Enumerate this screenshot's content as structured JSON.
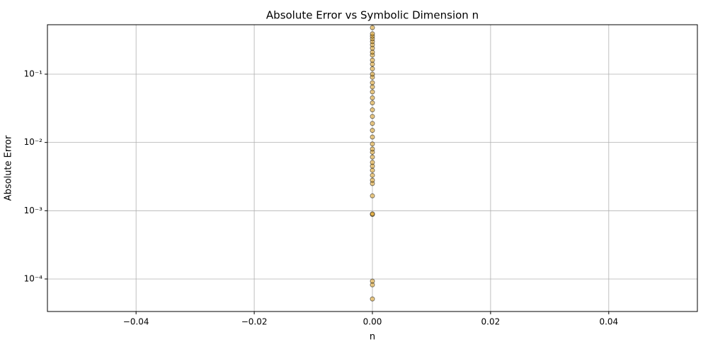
{
  "chart_data": {
    "type": "scatter",
    "title": "Absolute Error vs Symbolic Dimension n",
    "x_label": "n",
    "y_label": "Absolute Error",
    "xlim": [
      -0.055,
      0.055
    ],
    "xticks": [
      {
        "value": -0.04,
        "label": "−0.04"
      },
      {
        "value": -0.02,
        "label": "−0.02"
      },
      {
        "value": 0,
        "label": "0.00"
      },
      0.02,
      0.04
    ],
    "ylim": [
      3.34e-05,
      0.53
    ],
    "y_scale": "log",
    "yticks": [
      {
        "value": 0.0001,
        "label": "10⁻⁴"
      },
      {
        "value": 0.001,
        "label": "10⁻³"
      },
      {
        "value": 0.01,
        "label": "10⁻²"
      },
      {
        "value": 0.1,
        "label": "10⁻¹"
      }
    ],
    "grid": true,
    "series": [
      {
        "color": "#e8a317",
        "edgecolor": "#000000",
        "alpha": 0.5,
        "x": [
          0,
          0,
          0,
          0,
          0,
          0,
          0,
          0,
          0,
          0,
          0,
          0,
          0,
          0,
          0,
          0,
          0,
          0,
          0,
          0,
          0,
          0,
          0,
          0,
          0,
          0,
          0,
          0,
          0,
          0,
          0,
          0,
          0,
          0,
          0,
          0,
          0,
          0,
          0,
          0
        ],
        "y": [
          5.1e-05,
          8.2e-05,
          9.3e-05,
          0.00088,
          0.0009,
          0.00165,
          0.0025,
          0.0028,
          0.0033,
          0.0039,
          0.0045,
          0.0051,
          0.0061,
          0.0072,
          0.008,
          0.0095,
          0.012,
          0.015,
          0.019,
          0.024,
          0.03,
          0.038,
          0.045,
          0.055,
          0.065,
          0.075,
          0.09,
          0.1,
          0.12,
          0.14,
          0.16,
          0.19,
          0.21,
          0.24,
          0.27,
          0.3,
          0.33,
          0.36,
          0.39,
          0.48
        ]
      }
    ]
  }
}
